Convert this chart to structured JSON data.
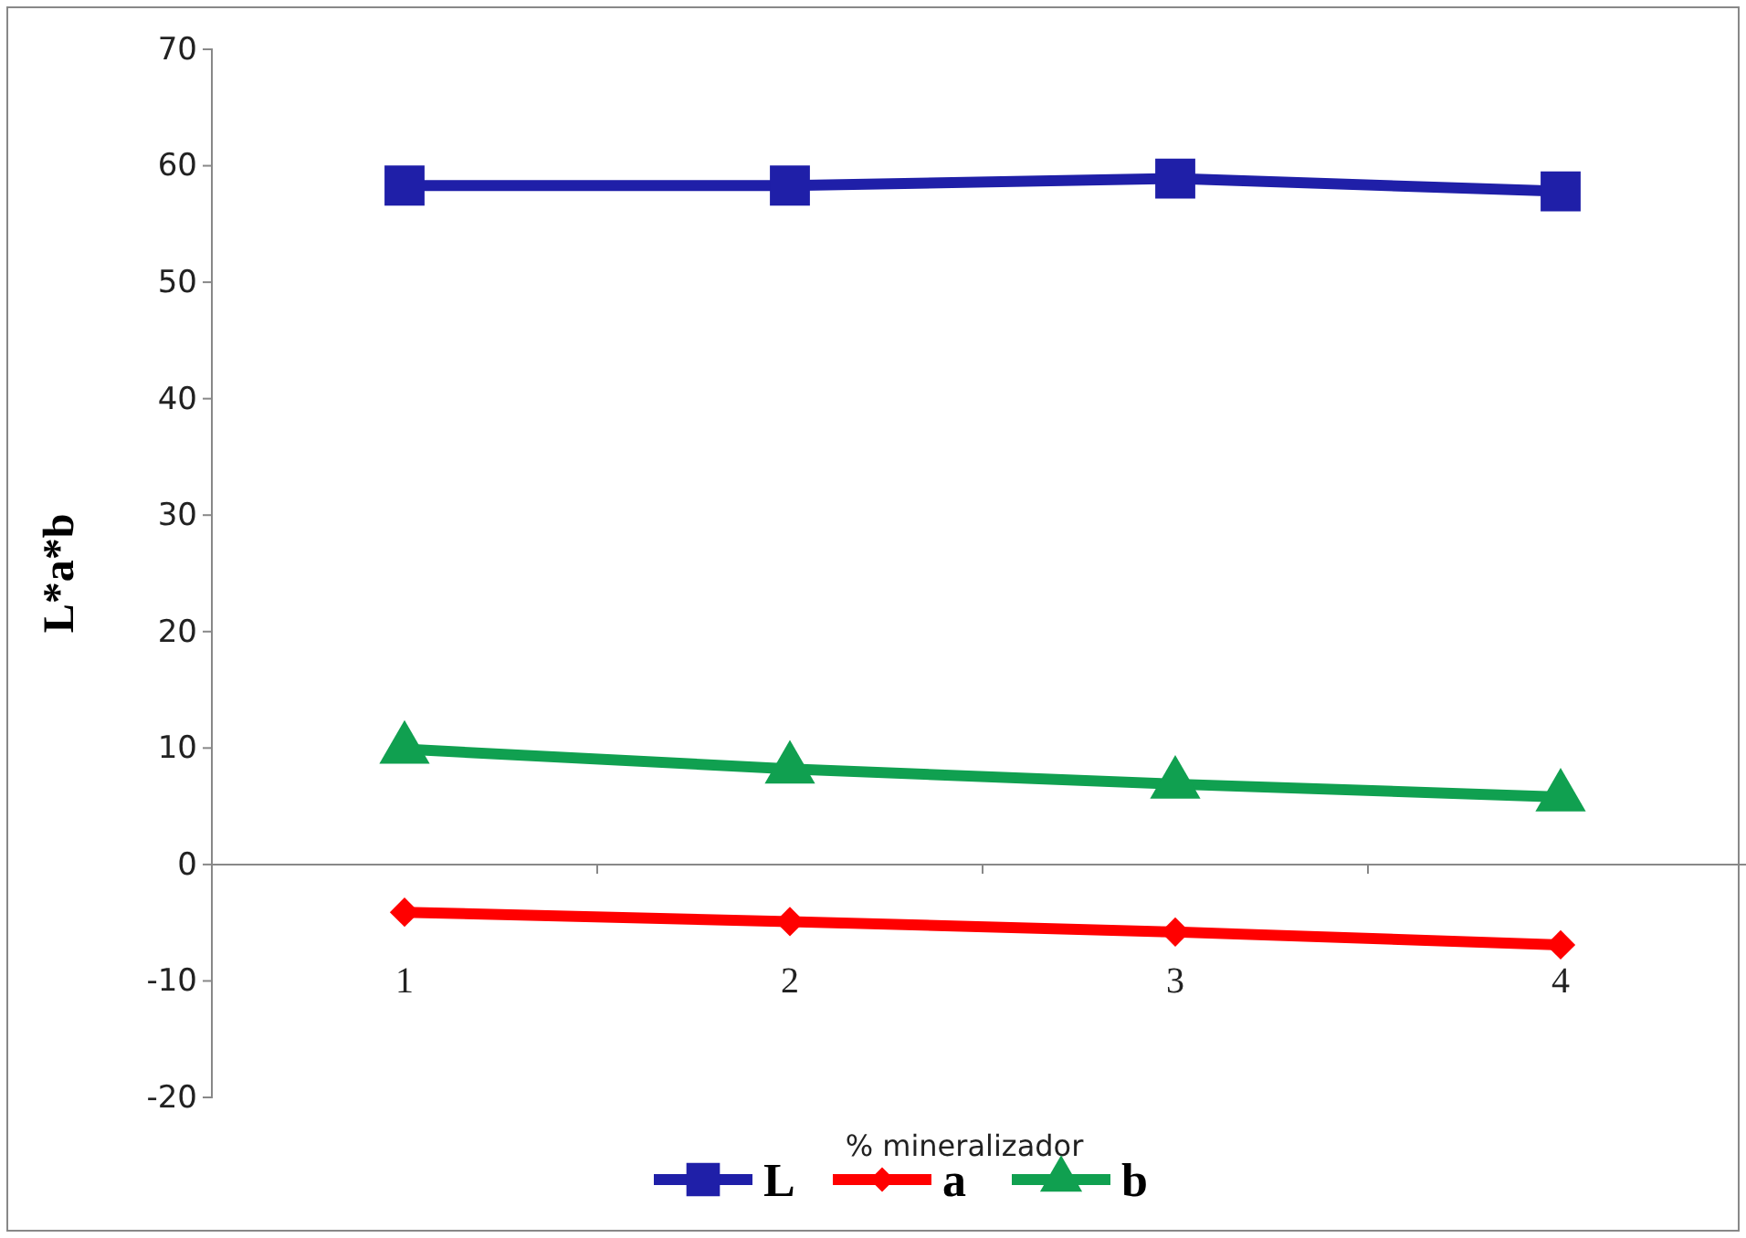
{
  "chart_data": {
    "type": "line",
    "xlabel": "% mineralizador",
    "ylabel": "L*a*b",
    "categories": [
      "1",
      "2",
      "3",
      "4"
    ],
    "series": [
      {
        "name": "L",
        "color": "#1f1fa8",
        "marker": "square",
        "values": [
          58.3,
          58.3,
          58.9,
          57.8
        ]
      },
      {
        "name": "a",
        "color": "#ff0000",
        "marker": "diamond",
        "values": [
          -4.1,
          -4.9,
          -5.8,
          -6.9
        ]
      },
      {
        "name": "b",
        "color": "#10a050",
        "marker": "triangle",
        "values": [
          9.9,
          8.2,
          6.9,
          5.8
        ]
      }
    ],
    "ylim": [
      -20,
      70
    ],
    "yticks": [
      -20,
      -10,
      0,
      10,
      20,
      30,
      40,
      50,
      60,
      70
    ],
    "legend": "bottom",
    "line_style": "solid"
  }
}
